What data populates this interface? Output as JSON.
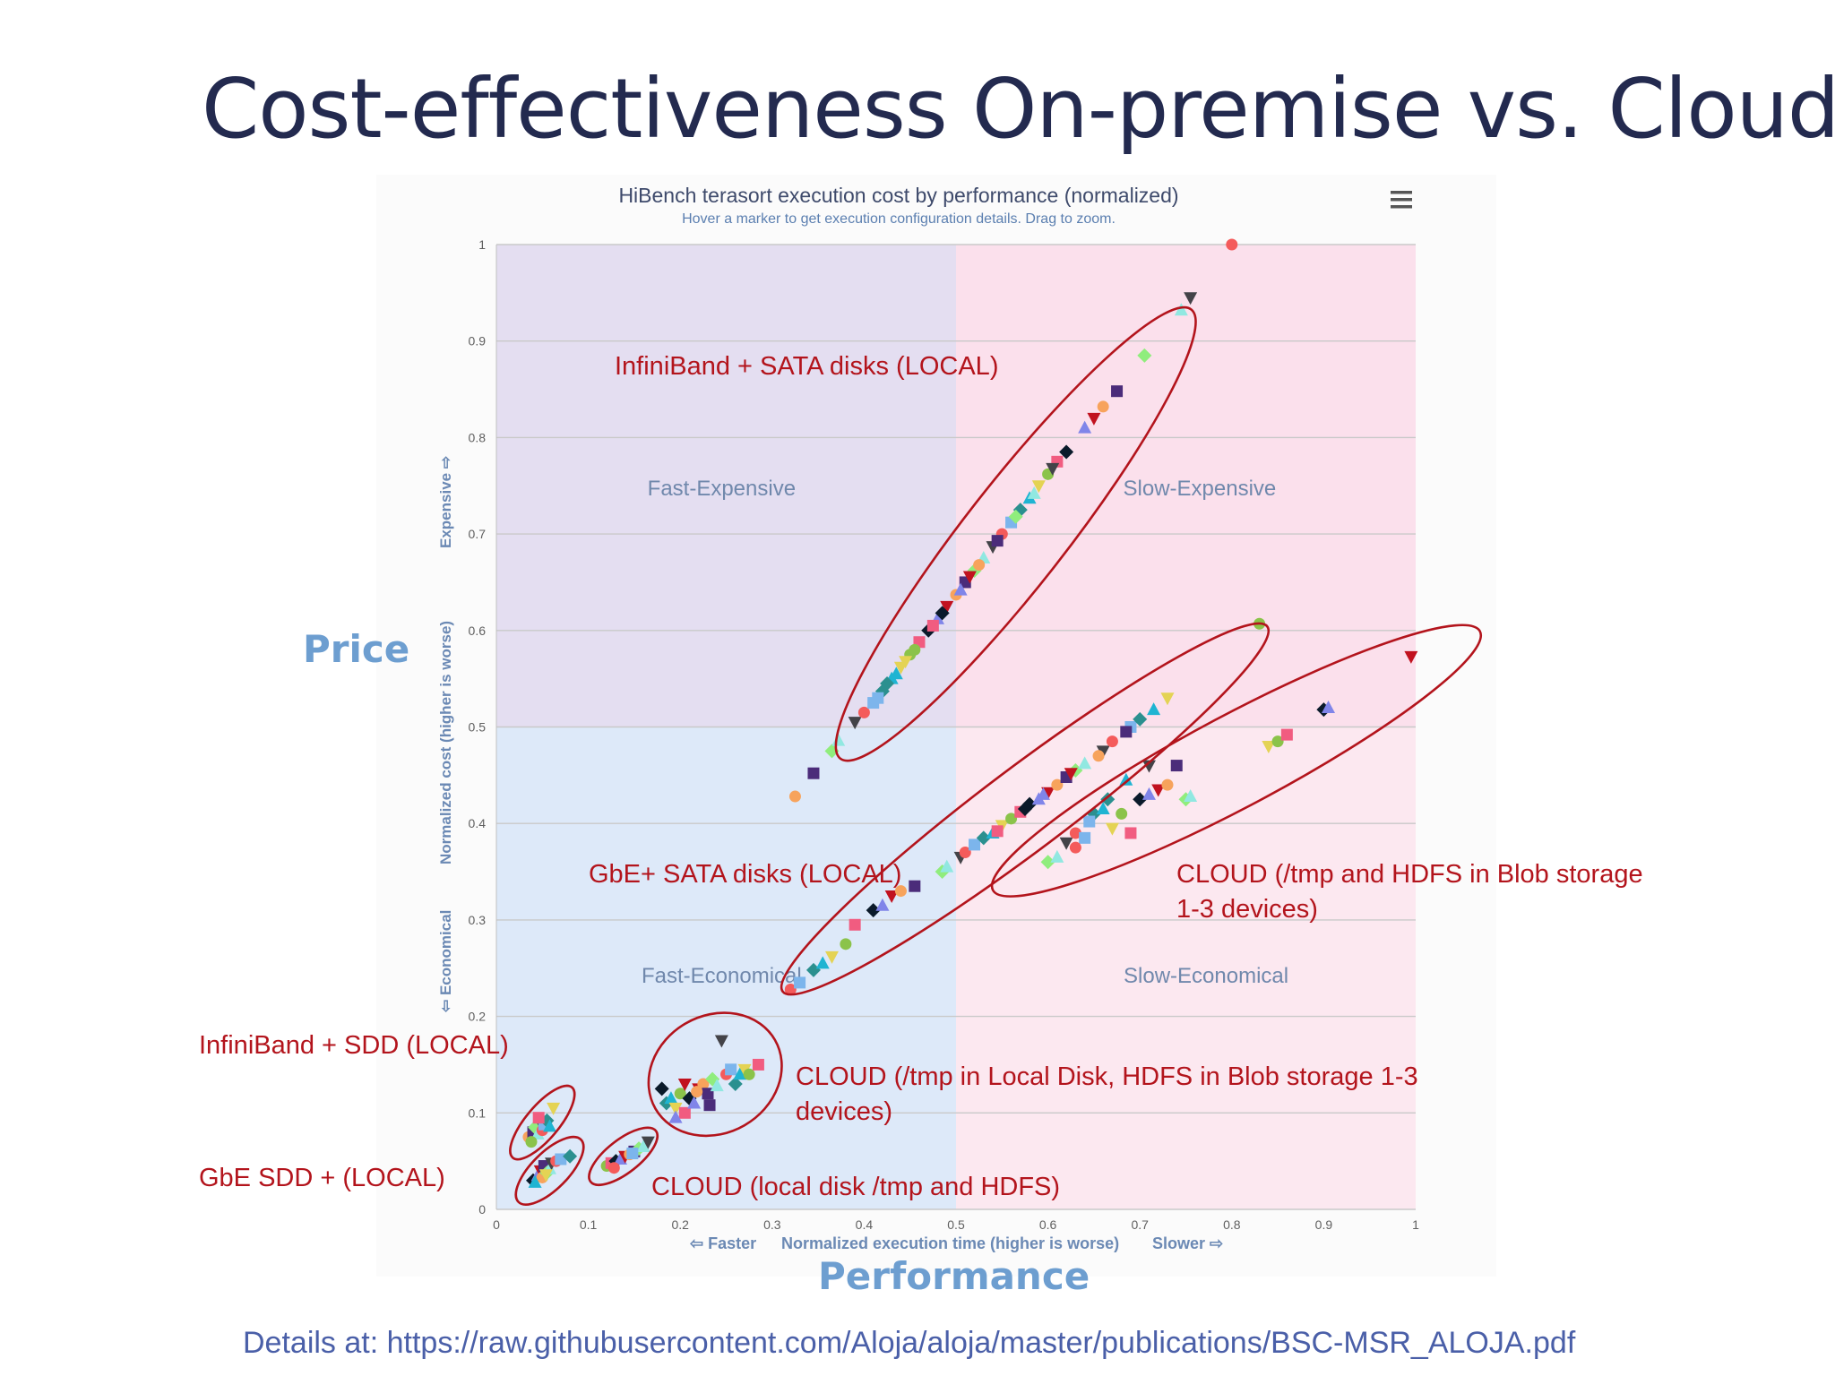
{
  "slide": {
    "title": "Cost-effectiveness On-premise vs. Cloud)",
    "y_callout": "Price",
    "x_callout": "Performance",
    "footer": "Details at: https://raw.githubusercontent.com/Aloja/aloja/master/publications/BSC-MSR_ALOJA.pdf"
  },
  "annotations": {
    "ib_sata": "InfiniBand + SATA disks (LOCAL)",
    "gbe_sata": "GbE+ SATA disks (LOCAL)",
    "cloud_blob_line1": "CLOUD (/tmp and HDFS in Blob storage",
    "cloud_blob_line2": "1-3 devices)",
    "ib_sdd": "InfiniBand + SDD (LOCAL)",
    "gbe_sdd": "GbE SDD + (LOCAL)",
    "cloud_mixed_line1": "CLOUD (/tmp in Local Disk, HDFS in Blob storage 1-3",
    "cloud_mixed_line2": "devices)",
    "cloud_local": "CLOUD (local disk /tmp and HDFS)"
  },
  "chart_menu_icon": "hamburger-menu-icon",
  "colors": {
    "fast_expensive": "#e4def1",
    "slow_expensive": "#fbe0ec",
    "fast_economical": "#dde9f9",
    "slow_economical": "#fce8f0",
    "annotation": "#b3141c",
    "title": "#232a4f",
    "callout": "#6d9ed0"
  },
  "chart_data": {
    "type": "scatter",
    "title": "HiBench terasort execution cost by performance (normalized)",
    "subtitle": "Hover a marker to get execution configuration details. Drag to zoom.",
    "xlabel": "Normalized execution time (higher is worse)",
    "xlabel_left": "⇦ Faster",
    "xlabel_right": "Slower ⇨",
    "ylabel": "Normalized cost (higher is worse)",
    "ylabel_low": "⇦ Economical",
    "ylabel_high": "Expensive ⇨",
    "xlim": [
      0,
      1
    ],
    "ylim": [
      0,
      1
    ],
    "x_ticks": [
      "0",
      "0.1",
      "0.2",
      "0.3",
      "0.4",
      "0.5",
      "0.6",
      "0.7",
      "0.8",
      "0.9",
      "1"
    ],
    "y_ticks": [
      "0",
      "0.1",
      "0.2",
      "0.3",
      "0.4",
      "0.5",
      "0.6",
      "0.7",
      "0.8",
      "0.9",
      "1"
    ],
    "grid": true,
    "quadrants": [
      {
        "name": "fast-expensive",
        "label": "Fast-Expensive",
        "x_range": [
          0,
          0.5
        ],
        "y_range": [
          0.5,
          1
        ]
      },
      {
        "name": "slow-expensive",
        "label": "Slow-Expensive",
        "x_range": [
          0.5,
          1
        ],
        "y_range": [
          0.5,
          1
        ]
      },
      {
        "name": "fast-economical",
        "label": "Fast-Economical",
        "x_range": [
          0,
          0.5
        ],
        "y_range": [
          0,
          0.5
        ]
      },
      {
        "name": "slow-economical",
        "label": "Slow-Economical",
        "x_range": [
          0.5,
          1
        ],
        "y_range": [
          0,
          0.5
        ]
      }
    ],
    "point_colors": [
      "#7cb5ec",
      "#434348",
      "#90ed7d",
      "#f7a35c",
      "#8085e9",
      "#f15c80",
      "#e4d354",
      "#2b908f",
      "#f45b5b",
      "#91e8e1",
      "#4b2c7a",
      "#c1121f",
      "#0a1a2a",
      "#8bc34a",
      "#1fb4d2"
    ],
    "groups": [
      {
        "name": "InfiniBand + SATA disks (LOCAL)",
        "points": [
          [
            0.325,
            0.428
          ],
          [
            0.345,
            0.452
          ],
          [
            0.365,
            0.475
          ],
          [
            0.372,
            0.486
          ],
          [
            0.39,
            0.505
          ],
          [
            0.4,
            0.515
          ],
          [
            0.41,
            0.525
          ],
          [
            0.42,
            0.537
          ],
          [
            0.43,
            0.55
          ],
          [
            0.44,
            0.562
          ],
          [
            0.45,
            0.575
          ],
          [
            0.46,
            0.588
          ],
          [
            0.47,
            0.6
          ],
          [
            0.48,
            0.612
          ],
          [
            0.49,
            0.625
          ],
          [
            0.5,
            0.637
          ],
          [
            0.51,
            0.65
          ],
          [
            0.52,
            0.662
          ],
          [
            0.53,
            0.675
          ],
          [
            0.54,
            0.687
          ],
          [
            0.55,
            0.7
          ],
          [
            0.56,
            0.712
          ],
          [
            0.57,
            0.725
          ],
          [
            0.58,
            0.737
          ],
          [
            0.59,
            0.75
          ],
          [
            0.6,
            0.762
          ],
          [
            0.61,
            0.775
          ],
          [
            0.62,
            0.785
          ],
          [
            0.64,
            0.81
          ],
          [
            0.65,
            0.82
          ],
          [
            0.66,
            0.832
          ],
          [
            0.675,
            0.848
          ],
          [
            0.705,
            0.885
          ],
          [
            0.745,
            0.932
          ],
          [
            0.755,
            0.945
          ],
          [
            0.8,
            1.0
          ],
          [
            0.415,
            0.53
          ],
          [
            0.425,
            0.545
          ],
          [
            0.435,
            0.555
          ],
          [
            0.445,
            0.568
          ],
          [
            0.455,
            0.58
          ],
          [
            0.475,
            0.605
          ],
          [
            0.485,
            0.618
          ],
          [
            0.505,
            0.642
          ],
          [
            0.515,
            0.656
          ],
          [
            0.525,
            0.668
          ],
          [
            0.545,
            0.693
          ],
          [
            0.565,
            0.718
          ],
          [
            0.585,
            0.742
          ],
          [
            0.605,
            0.768
          ]
        ]
      },
      {
        "name": "GbE+ SATA disks (LOCAL)",
        "points": [
          [
            0.32,
            0.228
          ],
          [
            0.33,
            0.235
          ],
          [
            0.345,
            0.248
          ],
          [
            0.355,
            0.255
          ],
          [
            0.365,
            0.262
          ],
          [
            0.38,
            0.275
          ],
          [
            0.39,
            0.295
          ],
          [
            0.41,
            0.31
          ],
          [
            0.42,
            0.315
          ],
          [
            0.43,
            0.325
          ],
          [
            0.44,
            0.33
          ],
          [
            0.455,
            0.335
          ],
          [
            0.485,
            0.35
          ],
          [
            0.49,
            0.355
          ],
          [
            0.505,
            0.365
          ],
          [
            0.51,
            0.37
          ],
          [
            0.52,
            0.378
          ],
          [
            0.53,
            0.385
          ],
          [
            0.54,
            0.39
          ],
          [
            0.55,
            0.398
          ],
          [
            0.56,
            0.405
          ],
          [
            0.57,
            0.412
          ],
          [
            0.58,
            0.42
          ],
          [
            0.59,
            0.425
          ],
          [
            0.6,
            0.432
          ],
          [
            0.61,
            0.44
          ],
          [
            0.62,
            0.448
          ],
          [
            0.63,
            0.455
          ],
          [
            0.64,
            0.462
          ],
          [
            0.66,
            0.475
          ],
          [
            0.67,
            0.485
          ],
          [
            0.69,
            0.5
          ],
          [
            0.7,
            0.508
          ],
          [
            0.715,
            0.518
          ],
          [
            0.73,
            0.53
          ],
          [
            0.83,
            0.607
          ],
          [
            0.545,
            0.392
          ],
          [
            0.575,
            0.415
          ],
          [
            0.595,
            0.43
          ],
          [
            0.625,
            0.452
          ],
          [
            0.655,
            0.47
          ],
          [
            0.685,
            0.495
          ]
        ]
      },
      {
        "name": "CLOUD (/tmp and HDFS in Blob storage 1-3 devices)",
        "points": [
          [
            0.6,
            0.36
          ],
          [
            0.61,
            0.365
          ],
          [
            0.62,
            0.38
          ],
          [
            0.63,
            0.39
          ],
          [
            0.64,
            0.385
          ],
          [
            0.65,
            0.41
          ],
          [
            0.66,
            0.415
          ],
          [
            0.67,
            0.395
          ],
          [
            0.68,
            0.41
          ],
          [
            0.69,
            0.39
          ],
          [
            0.7,
            0.425
          ],
          [
            0.71,
            0.43
          ],
          [
            0.72,
            0.435
          ],
          [
            0.73,
            0.44
          ],
          [
            0.74,
            0.46
          ],
          [
            0.75,
            0.425
          ],
          [
            0.755,
            0.428
          ],
          [
            0.71,
            0.46
          ],
          [
            0.63,
            0.375
          ],
          [
            0.645,
            0.402
          ],
          [
            0.665,
            0.425
          ],
          [
            0.685,
            0.445
          ],
          [
            0.84,
            0.48
          ],
          [
            0.85,
            0.485
          ],
          [
            0.86,
            0.492
          ],
          [
            0.9,
            0.518
          ],
          [
            0.905,
            0.52
          ],
          [
            0.995,
            0.573
          ]
        ]
      },
      {
        "name": "InfiniBand + SDD (LOCAL)",
        "points": [
          [
            0.035,
            0.075
          ],
          [
            0.04,
            0.08
          ],
          [
            0.042,
            0.085
          ],
          [
            0.045,
            0.078
          ],
          [
            0.048,
            0.09
          ],
          [
            0.05,
            0.082
          ],
          [
            0.052,
            0.088
          ],
          [
            0.055,
            0.092
          ],
          [
            0.058,
            0.086
          ],
          [
            0.062,
            0.105
          ],
          [
            0.038,
            0.07
          ],
          [
            0.046,
            0.095
          ]
        ]
      },
      {
        "name": "GbE SDD + (LOCAL)",
        "points": [
          [
            0.04,
            0.03
          ],
          [
            0.045,
            0.035
          ],
          [
            0.048,
            0.04
          ],
          [
            0.05,
            0.033
          ],
          [
            0.052,
            0.045
          ],
          [
            0.055,
            0.038
          ],
          [
            0.058,
            0.042
          ],
          [
            0.06,
            0.048
          ],
          [
            0.065,
            0.05
          ],
          [
            0.07,
            0.052
          ],
          [
            0.08,
            0.055
          ],
          [
            0.042,
            0.028
          ],
          [
            0.054,
            0.036
          ]
        ]
      },
      {
        "name": "CLOUD (local disk /tmp and HDFS)",
        "points": [
          [
            0.12,
            0.045
          ],
          [
            0.125,
            0.048
          ],
          [
            0.13,
            0.05
          ],
          [
            0.135,
            0.052
          ],
          [
            0.14,
            0.055
          ],
          [
            0.145,
            0.057
          ],
          [
            0.15,
            0.06
          ],
          [
            0.155,
            0.063
          ],
          [
            0.16,
            0.065
          ],
          [
            0.165,
            0.07
          ],
          [
            0.128,
            0.043
          ],
          [
            0.148,
            0.058
          ]
        ]
      },
      {
        "name": "CLOUD (/tmp in Local Disk, HDFS in Blob storage 1-3 devices)",
        "points": [
          [
            0.185,
            0.11
          ],
          [
            0.19,
            0.115
          ],
          [
            0.195,
            0.105
          ],
          [
            0.2,
            0.12
          ],
          [
            0.205,
            0.1
          ],
          [
            0.21,
            0.115
          ],
          [
            0.215,
            0.11
          ],
          [
            0.22,
            0.125
          ],
          [
            0.225,
            0.13
          ],
          [
            0.23,
            0.12
          ],
          [
            0.235,
            0.135
          ],
          [
            0.24,
            0.128
          ],
          [
            0.245,
            0.175
          ],
          [
            0.25,
            0.14
          ],
          [
            0.255,
            0.145
          ],
          [
            0.26,
            0.13
          ],
          [
            0.265,
            0.14
          ],
          [
            0.27,
            0.145
          ],
          [
            0.275,
            0.14
          ],
          [
            0.285,
            0.15
          ],
          [
            0.18,
            0.125
          ],
          [
            0.195,
            0.095
          ],
          [
            0.205,
            0.13
          ],
          [
            0.218,
            0.122
          ],
          [
            0.232,
            0.108
          ]
        ]
      }
    ]
  }
}
